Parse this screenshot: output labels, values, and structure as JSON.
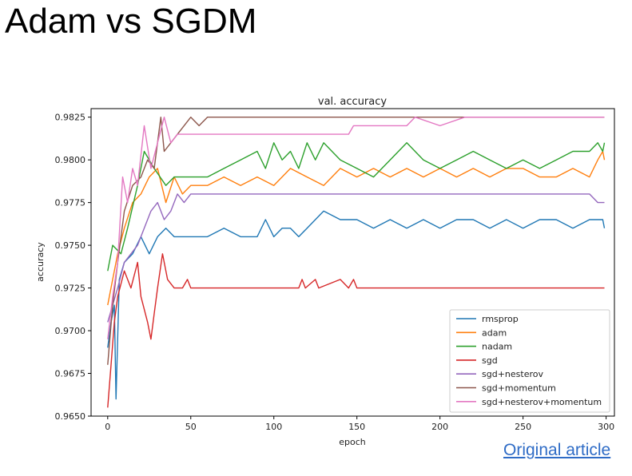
{
  "slide": {
    "title": "Adam vs SGDM",
    "link_text": "Original article"
  },
  "chart_data": {
    "type": "line",
    "title": "val. accuracy",
    "xlabel": "epoch",
    "ylabel": "accuracy",
    "xlim": [
      -10,
      305
    ],
    "ylim": [
      0.965,
      0.983
    ],
    "xticks": [
      0,
      50,
      100,
      150,
      200,
      250,
      300
    ],
    "yticks": [
      0.965,
      0.9675,
      0.97,
      0.9725,
      0.975,
      0.9775,
      0.98,
      0.9825
    ],
    "ytick_labels": [
      "0.9650",
      "0.9675",
      "0.9700",
      "0.9725",
      "0.9750",
      "0.9775",
      "0.9800",
      "0.9825"
    ],
    "grid": false,
    "legend_position": "lower-right",
    "series": [
      {
        "name": "rmsprop",
        "color": "#1f77b4",
        "points": [
          [
            0,
            0.969
          ],
          [
            2,
            0.9705
          ],
          [
            4,
            0.9715
          ],
          [
            5,
            0.966
          ],
          [
            7,
            0.973
          ],
          [
            10,
            0.974
          ],
          [
            15,
            0.9745
          ],
          [
            20,
            0.9755
          ],
          [
            25,
            0.9745
          ],
          [
            30,
            0.9755
          ],
          [
            35,
            0.976
          ],
          [
            40,
            0.9755
          ],
          [
            50,
            0.9755
          ],
          [
            60,
            0.9755
          ],
          [
            70,
            0.976
          ],
          [
            80,
            0.9755
          ],
          [
            90,
            0.9755
          ],
          [
            95,
            0.9765
          ],
          [
            100,
            0.9755
          ],
          [
            105,
            0.976
          ],
          [
            110,
            0.976
          ],
          [
            115,
            0.9755
          ],
          [
            120,
            0.976
          ],
          [
            125,
            0.9765
          ],
          [
            130,
            0.977
          ],
          [
            140,
            0.9765
          ],
          [
            150,
            0.9765
          ],
          [
            160,
            0.976
          ],
          [
            170,
            0.9765
          ],
          [
            180,
            0.976
          ],
          [
            190,
            0.9765
          ],
          [
            200,
            0.976
          ],
          [
            210,
            0.9765
          ],
          [
            220,
            0.9765
          ],
          [
            230,
            0.976
          ],
          [
            240,
            0.9765
          ],
          [
            250,
            0.976
          ],
          [
            260,
            0.9765
          ],
          [
            270,
            0.9765
          ],
          [
            280,
            0.976
          ],
          [
            290,
            0.9765
          ],
          [
            298,
            0.9765
          ],
          [
            299,
            0.976
          ]
        ]
      },
      {
        "name": "adam",
        "color": "#ff7f0e",
        "points": [
          [
            0,
            0.9715
          ],
          [
            3,
            0.973
          ],
          [
            6,
            0.9745
          ],
          [
            10,
            0.976
          ],
          [
            15,
            0.9775
          ],
          [
            20,
            0.978
          ],
          [
            25,
            0.979
          ],
          [
            30,
            0.9795
          ],
          [
            35,
            0.9775
          ],
          [
            40,
            0.979
          ],
          [
            45,
            0.978
          ],
          [
            50,
            0.9785
          ],
          [
            60,
            0.9785
          ],
          [
            70,
            0.979
          ],
          [
            80,
            0.9785
          ],
          [
            90,
            0.979
          ],
          [
            100,
            0.9785
          ],
          [
            110,
            0.9795
          ],
          [
            120,
            0.979
          ],
          [
            130,
            0.9785
          ],
          [
            140,
            0.9795
          ],
          [
            150,
            0.979
          ],
          [
            160,
            0.9795
          ],
          [
            170,
            0.979
          ],
          [
            180,
            0.9795
          ],
          [
            190,
            0.979
          ],
          [
            200,
            0.9795
          ],
          [
            210,
            0.979
          ],
          [
            220,
            0.9795
          ],
          [
            230,
            0.979
          ],
          [
            240,
            0.9795
          ],
          [
            250,
            0.9795
          ],
          [
            260,
            0.979
          ],
          [
            270,
            0.979
          ],
          [
            280,
            0.9795
          ],
          [
            290,
            0.979
          ],
          [
            295,
            0.98
          ],
          [
            298,
            0.9805
          ],
          [
            299,
            0.98
          ]
        ]
      },
      {
        "name": "nadam",
        "color": "#2ca02c",
        "points": [
          [
            0,
            0.9735
          ],
          [
            3,
            0.975
          ],
          [
            8,
            0.9745
          ],
          [
            12,
            0.976
          ],
          [
            18,
            0.9785
          ],
          [
            22,
            0.9805
          ],
          [
            28,
            0.9795
          ],
          [
            35,
            0.9785
          ],
          [
            40,
            0.979
          ],
          [
            50,
            0.979
          ],
          [
            60,
            0.979
          ],
          [
            70,
            0.9795
          ],
          [
            80,
            0.98
          ],
          [
            90,
            0.9805
          ],
          [
            95,
            0.9795
          ],
          [
            100,
            0.981
          ],
          [
            105,
            0.98
          ],
          [
            110,
            0.9805
          ],
          [
            115,
            0.9795
          ],
          [
            120,
            0.981
          ],
          [
            125,
            0.98
          ],
          [
            130,
            0.981
          ],
          [
            140,
            0.98
          ],
          [
            150,
            0.9795
          ],
          [
            160,
            0.979
          ],
          [
            170,
            0.98
          ],
          [
            180,
            0.981
          ],
          [
            190,
            0.98
          ],
          [
            200,
            0.9795
          ],
          [
            210,
            0.98
          ],
          [
            220,
            0.9805
          ],
          [
            230,
            0.98
          ],
          [
            240,
            0.9795
          ],
          [
            250,
            0.98
          ],
          [
            260,
            0.9795
          ],
          [
            270,
            0.98
          ],
          [
            280,
            0.9805
          ],
          [
            290,
            0.9805
          ],
          [
            295,
            0.981
          ],
          [
            298,
            0.9805
          ],
          [
            299,
            0.981
          ]
        ]
      },
      {
        "name": "sgd",
        "color": "#d62728",
        "points": [
          [
            0,
            0.9655
          ],
          [
            2,
            0.968
          ],
          [
            4,
            0.9705
          ],
          [
            6,
            0.972
          ],
          [
            10,
            0.9735
          ],
          [
            14,
            0.9725
          ],
          [
            18,
            0.974
          ],
          [
            20,
            0.972
          ],
          [
            24,
            0.9705
          ],
          [
            26,
            0.9695
          ],
          [
            28,
            0.971
          ],
          [
            30,
            0.9725
          ],
          [
            33,
            0.9745
          ],
          [
            36,
            0.973
          ],
          [
            40,
            0.9725
          ],
          [
            45,
            0.9725
          ],
          [
            48,
            0.973
          ],
          [
            50,
            0.9725
          ],
          [
            60,
            0.9725
          ],
          [
            80,
            0.9725
          ],
          [
            100,
            0.9725
          ],
          [
            115,
            0.9725
          ],
          [
            117,
            0.973
          ],
          [
            119,
            0.9725
          ],
          [
            125,
            0.973
          ],
          [
            127,
            0.9725
          ],
          [
            140,
            0.973
          ],
          [
            145,
            0.9725
          ],
          [
            148,
            0.973
          ],
          [
            150,
            0.9725
          ],
          [
            200,
            0.9725
          ],
          [
            250,
            0.9725
          ],
          [
            299,
            0.9725
          ]
        ]
      },
      {
        "name": "sgd+nesterov",
        "color": "#9467bd",
        "points": [
          [
            0,
            0.9705
          ],
          [
            3,
            0.9715
          ],
          [
            6,
            0.9725
          ],
          [
            10,
            0.974
          ],
          [
            14,
            0.9745
          ],
          [
            18,
            0.975
          ],
          [
            22,
            0.976
          ],
          [
            26,
            0.977
          ],
          [
            30,
            0.9775
          ],
          [
            34,
            0.9765
          ],
          [
            38,
            0.977
          ],
          [
            42,
            0.978
          ],
          [
            46,
            0.9775
          ],
          [
            50,
            0.978
          ],
          [
            60,
            0.978
          ],
          [
            70,
            0.978
          ],
          [
            80,
            0.978
          ],
          [
            100,
            0.978
          ],
          [
            150,
            0.978
          ],
          [
            200,
            0.978
          ],
          [
            250,
            0.978
          ],
          [
            290,
            0.978
          ],
          [
            295,
            0.9775
          ],
          [
            299,
            0.9775
          ]
        ]
      },
      {
        "name": "sgd+momentum",
        "color": "#8c564b",
        "points": [
          [
            0,
            0.968
          ],
          [
            3,
            0.9715
          ],
          [
            6,
            0.974
          ],
          [
            10,
            0.977
          ],
          [
            15,
            0.9785
          ],
          [
            20,
            0.979
          ],
          [
            24,
            0.98
          ],
          [
            28,
            0.9795
          ],
          [
            32,
            0.9825
          ],
          [
            34,
            0.9805
          ],
          [
            38,
            0.981
          ],
          [
            42,
            0.9815
          ],
          [
            46,
            0.982
          ],
          [
            50,
            0.9825
          ],
          [
            55,
            0.982
          ],
          [
            60,
            0.9825
          ],
          [
            80,
            0.9825
          ],
          [
            100,
            0.9825
          ],
          [
            150,
            0.9825
          ],
          [
            200,
            0.9825
          ],
          [
            250,
            0.9825
          ],
          [
            299,
            0.9825
          ]
        ]
      },
      {
        "name": "sgd+nesterov+momentum",
        "color": "#e377c2",
        "points": [
          [
            0,
            0.9695
          ],
          [
            3,
            0.972
          ],
          [
            6,
            0.974
          ],
          [
            9,
            0.979
          ],
          [
            12,
            0.9775
          ],
          [
            15,
            0.9795
          ],
          [
            18,
            0.9785
          ],
          [
            22,
            0.982
          ],
          [
            26,
            0.9795
          ],
          [
            30,
            0.981
          ],
          [
            34,
            0.9825
          ],
          [
            38,
            0.981
          ],
          [
            42,
            0.9815
          ],
          [
            50,
            0.9815
          ],
          [
            60,
            0.9815
          ],
          [
            100,
            0.9815
          ],
          [
            145,
            0.9815
          ],
          [
            148,
            0.982
          ],
          [
            180,
            0.982
          ],
          [
            185,
            0.9825
          ],
          [
            200,
            0.982
          ],
          [
            215,
            0.9825
          ],
          [
            230,
            0.9825
          ],
          [
            260,
            0.9825
          ],
          [
            299,
            0.9825
          ]
        ]
      }
    ]
  }
}
